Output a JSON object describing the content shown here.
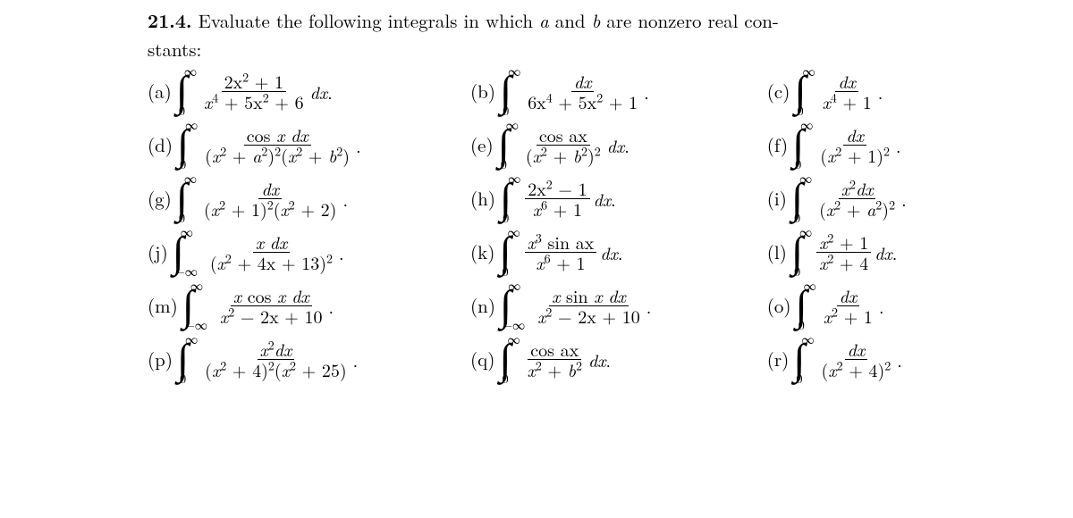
{
  "problem": {
    "number": "21.4.",
    "stem_line1": "Evaluate the following integrals in which ",
    "stem_a": "a",
    "stem_mid": " and ",
    "stem_b": "b",
    "stem_line1_end": " are nonzero real con-",
    "stem_line2": "stants:"
  },
  "rows": [
    {
      "items": [
        {
          "label": "(a)",
          "lo": "0",
          "up": "∞",
          "num": "2x² + 1",
          "den": "x⁴ + 5x² + 6",
          "tail": " dx."
        },
        {
          "label": "(b)",
          "lo": "0",
          "up": "∞",
          "num": "dx",
          "den": "6x⁴ + 5x² + 1",
          "tail": "."
        },
        {
          "label": "(c)",
          "lo": "0",
          "up": "∞",
          "num": "dx",
          "den": "x⁴ + 1",
          "tail": "."
        }
      ]
    },
    {
      "items": [
        {
          "label": "(d)",
          "lo": "0",
          "up": "∞",
          "num": "cos x dx",
          "den": "(x² + a²)²(x² + b²)",
          "tail": "."
        },
        {
          "label": "(e)",
          "lo": "0",
          "up": "∞",
          "num": "cos ax",
          "den": "(x² + b²)²",
          "tail": " dx."
        },
        {
          "label": "(f)",
          "lo": "0",
          "up": "∞",
          "num": "dx",
          "den": "(x² + 1)²",
          "tail": "."
        }
      ]
    },
    {
      "items": [
        {
          "label": "(g)",
          "lo": "0",
          "up": "∞",
          "num": "dx",
          "den": "(x² + 1)²(x² + 2)",
          "tail": "."
        },
        {
          "label": "(h)",
          "lo": "0",
          "up": "∞",
          "num": "2x² − 1",
          "den": "x⁶ + 1",
          "tail": " dx."
        },
        {
          "label": "(i)",
          "lo": "0",
          "up": "∞",
          "num": "x²dx",
          "den": "(x² + a²)²",
          "tail": "."
        }
      ]
    },
    {
      "items": [
        {
          "label": "(j)",
          "lo": "−∞",
          "up": "∞",
          "num": "x dx",
          "den": "(x² + 4x + 13)²",
          "tail": "."
        },
        {
          "label": "(k)",
          "lo": "0",
          "up": "∞",
          "num": "x³ sin ax",
          "den": "x⁶ + 1",
          "tail": " dx."
        },
        {
          "label": "(l)",
          "lo": "0",
          "up": "∞",
          "num": "x² + 1",
          "den": "x² + 4",
          "tail": " dx."
        }
      ]
    },
    {
      "items": [
        {
          "label": "(m)",
          "lo": "−∞",
          "up": "∞",
          "num": "x cos x dx",
          "den": "x² − 2x + 10",
          "tail": "."
        },
        {
          "label": "(n)",
          "lo": "−∞",
          "up": "∞",
          "num": "x sin x dx",
          "den": "x² − 2x + 10",
          "tail": "."
        },
        {
          "label": "(o)",
          "lo": "0",
          "up": "∞",
          "num": "dx",
          "den": "x² + 1",
          "tail": "."
        }
      ]
    },
    {
      "items": [
        {
          "label": "(p)",
          "lo": "0",
          "up": "∞",
          "num": "x²dx",
          "den": "(x² + 4)²(x² + 25)",
          "tail": "."
        },
        {
          "label": "(q)",
          "lo": "0",
          "up": "∞",
          "num": "cos ax",
          "den": "x² + b²",
          "tail": " dx."
        },
        {
          "label": "(r)",
          "lo": "0",
          "up": "∞",
          "num": "dx",
          "den": "(x² + 4)²",
          "tail": "."
        }
      ]
    }
  ]
}
